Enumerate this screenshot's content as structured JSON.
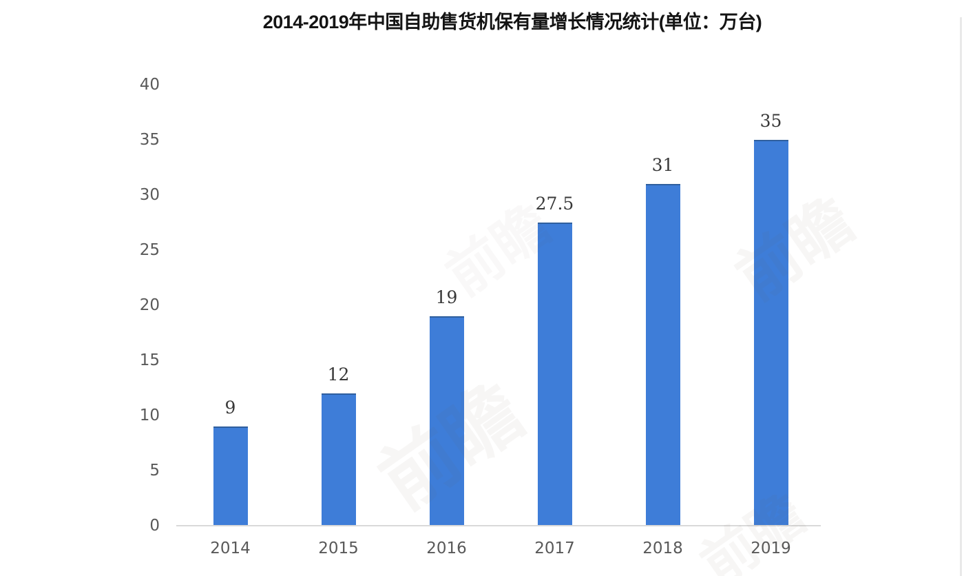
{
  "chart_data": {
    "type": "bar",
    "title": "2014-2019年中国自助售货机保有量增长情况统计(单位：万台)",
    "categories": [
      "2014",
      "2015",
      "2016",
      "2017",
      "2018",
      "2019"
    ],
    "values": [
      9,
      12,
      19,
      27.5,
      31,
      35
    ],
    "data_labels": [
      "9",
      "12",
      "19",
      "27.5",
      "31",
      "35"
    ],
    "xlabel": "",
    "ylabel": "",
    "ylim": [
      0,
      40
    ],
    "yticks": [
      0,
      5,
      10,
      15,
      20,
      25,
      30,
      35,
      40
    ],
    "grid": false,
    "legend": "none",
    "bar_color": "#3e7dd8",
    "bar_top_edge_color": "#2f5f9e",
    "axis_line_color": "#d9d9d9",
    "ytick_color": "#595959",
    "xtick_color": "#595959",
    "data_label_color": "#383838",
    "title_color": "#141414"
  },
  "watermark": {
    "text": "前瞻"
  }
}
